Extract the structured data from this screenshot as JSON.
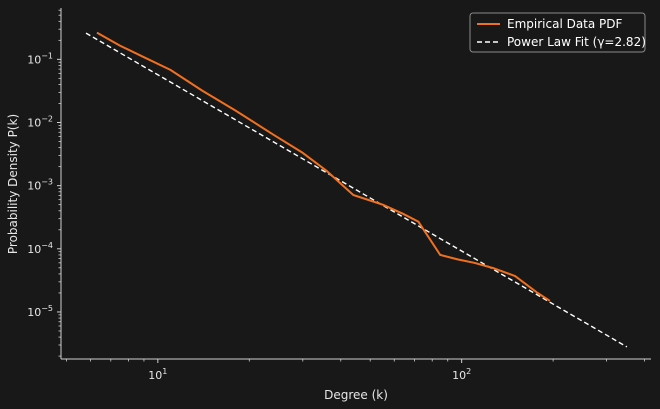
{
  "chart_data": {
    "type": "line",
    "xscale": "log",
    "yscale": "log",
    "xlabel": "Degree (k)",
    "ylabel": "Probability Density P(k)",
    "xlim": [
      4.8,
      420
    ],
    "ylim": [
      1.8e-06,
      0.65
    ],
    "x_ticks": [
      {
        "value": 10,
        "label": "10",
        "exp": "1"
      },
      {
        "value": 100,
        "label": "10",
        "exp": "2"
      }
    ],
    "y_ticks": [
      {
        "value": 0.1,
        "label": "10",
        "exp": "−1"
      },
      {
        "value": 0.01,
        "label": "10",
        "exp": "−2"
      },
      {
        "value": 0.001,
        "label": "10",
        "exp": "−3"
      },
      {
        "value": 0.0001,
        "label": "10",
        "exp": "−4"
      },
      {
        "value": 1e-05,
        "label": "10",
        "exp": "−5"
      }
    ],
    "grid": false,
    "legend_position": "top-right",
    "series": [
      {
        "name": "Empirical Data PDF",
        "color": "#f07020",
        "style": "solid",
        "x": [
          6.3,
          7.5,
          9,
          11,
          14,
          18,
          24,
          30,
          36,
          44,
          55,
          64,
          72,
          85,
          97,
          110,
          128,
          150,
          178,
          195
        ],
        "y": [
          0.265,
          0.165,
          0.108,
          0.068,
          0.032,
          0.0155,
          0.0064,
          0.0033,
          0.0017,
          0.00071,
          0.0005,
          0.00036,
          0.00027,
          8e-05,
          6.8e-05,
          6e-05,
          4.9e-05,
          3.7e-05,
          2e-05,
          1.5e-05
        ]
      },
      {
        "name": "Power Law Fit (γ=2.82)",
        "color": "#ffffff",
        "style": "dashed",
        "x": [
          5.8,
          350
        ],
        "y": [
          0.26,
          2.8e-06
        ]
      }
    ]
  }
}
